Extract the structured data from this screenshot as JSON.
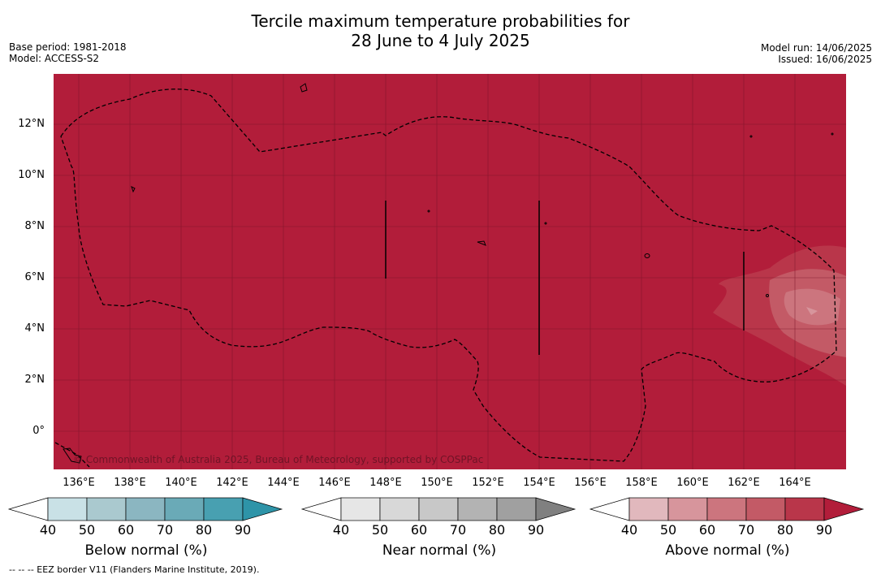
{
  "title_line1": "Tercile maximum temperature probabilities for",
  "title_line2": "28 June to 4 July 2025",
  "meta_left": {
    "base_period": "Base period: 1981-2018",
    "model": "Model: ACCESS-S2"
  },
  "meta_right": {
    "model_run": "Model run: 14/06/2025",
    "issued": "Issued: 16/06/2025"
  },
  "copyright": "© Commonwealth of Australia 2025, Bureau of Meteorology, supported by COSPPac",
  "footer": "--  --  -- EEZ border V11 (Flanders Marine Institute, 2019).",
  "lat_labels": [
    "12°N",
    "10°N",
    "8°N",
    "6°N",
    "4°N",
    "2°N",
    "0°"
  ],
  "lon_labels": [
    "136°E",
    "138°E",
    "140°E",
    "142°E",
    "144°E",
    "146°E",
    "148°E",
    "150°E",
    "152°E",
    "154°E",
    "156°E",
    "158°E",
    "160°E",
    "162°E",
    "164°E"
  ],
  "colorbars": [
    {
      "title": "Below normal (%)",
      "ticks": [
        "40",
        "50",
        "60",
        "70",
        "80",
        "90"
      ],
      "colors": [
        "#ffffff",
        "#c9e1e6",
        "#aac9cf",
        "#8bb6c1",
        "#6aaab7",
        "#48a0b1",
        "#2e94a8"
      ]
    },
    {
      "title": "Near normal (%)",
      "ticks": [
        "40",
        "50",
        "60",
        "70",
        "80",
        "90"
      ],
      "colors": [
        "#ffffff",
        "#e6e6e6",
        "#d8d8d8",
        "#c8c8c8",
        "#b3b3b3",
        "#a0a0a0",
        "#808080"
      ]
    },
    {
      "title": "Above normal (%)",
      "ticks": [
        "40",
        "50",
        "60",
        "70",
        "80",
        "90"
      ],
      "colors": [
        "#ffffff",
        "#e1b8bd",
        "#d7959c",
        "#cc757e",
        "#c35a66",
        "#b9364a",
        "#b21d3a"
      ]
    }
  ],
  "colors": {
    "dominant_above_normal": "#b21d3a"
  }
}
